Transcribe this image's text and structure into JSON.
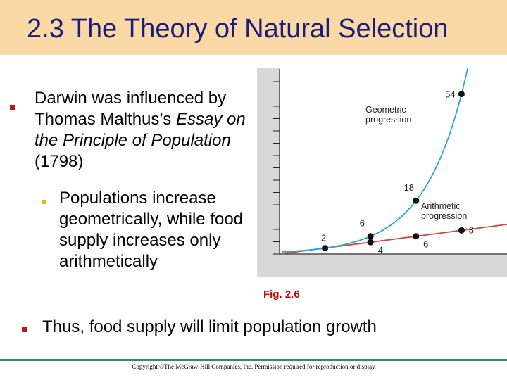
{
  "title": "2.3  The Theory of Natural Selection",
  "bullets": {
    "main_parts": [
      "Darwin was influenced by Thomas Malthus’s ",
      "Essay on the Principle of Population",
      " (1798)"
    ],
    "sub": "Populations increase geometrically, while food supply increases only arithmetically",
    "bottom": "Thus, food supply will limit population growth"
  },
  "figure_label": "Fig. 2.6",
  "copyright": "Copyright ©The McGraw-Hill Companies, Inc. Permission required for reproduction or display",
  "colors": {
    "title_band": "#fad9a6",
    "title_text": "#1c1c7a",
    "bullet": "#b5191a",
    "sub_bullet": "#e9b019",
    "geometric_curve": "#29a6d8",
    "arithmetic_line": "#d9413a",
    "fig_label": "#cc0000",
    "bottom_rule": "#2f8f6a"
  },
  "chart_data": {
    "type": "line",
    "title": "",
    "xlabel": "",
    "ylabel": "",
    "series": [
      {
        "name": "Geometric progression",
        "points": [
          {
            "x": 1,
            "y": 2,
            "label": "2"
          },
          {
            "x": 2,
            "y": 6,
            "label": "6"
          },
          {
            "x": 3,
            "y": 18,
            "label": "18"
          },
          {
            "x": 4,
            "y": 54,
            "label": "54"
          }
        ]
      },
      {
        "name": "Arithmetic progression",
        "points": [
          {
            "x": 1,
            "y": 2,
            "label": "2"
          },
          {
            "x": 2,
            "y": 4,
            "label": "4"
          },
          {
            "x": 3,
            "y": 6,
            "label": "6"
          },
          {
            "x": 4,
            "y": 8,
            "label": "8"
          }
        ]
      }
    ],
    "xlim": [
      0,
      5
    ],
    "ylim": [
      0,
      62
    ],
    "ticks": "unlabeled",
    "grid": false
  }
}
